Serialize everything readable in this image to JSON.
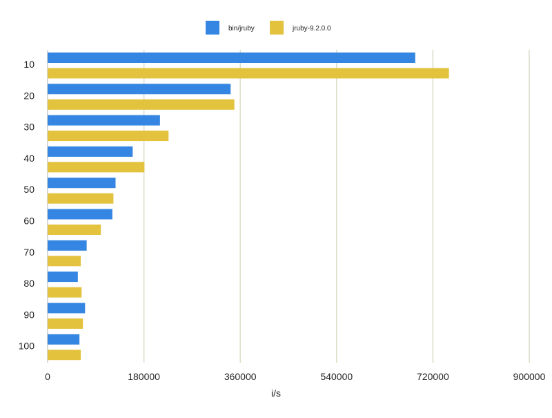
{
  "chart_data": {
    "type": "bar",
    "orientation": "horizontal",
    "title": "",
    "xlabel": "i/s",
    "ylabel": "",
    "xlim": [
      0,
      900000
    ],
    "xticks": [
      "0",
      "180000",
      "360000",
      "540000",
      "720000",
      "900000"
    ],
    "grid": true,
    "legend_position": "top",
    "categories": [
      "10",
      "20",
      "30",
      "40",
      "50",
      "60",
      "70",
      "80",
      "90",
      "100"
    ],
    "series": [
      {
        "name": "bin/jruby",
        "color": "#3586e2",
        "values": [
          687000,
          342000,
          210000,
          159000,
          127000,
          121000,
          73000,
          56500,
          70000,
          59500
        ]
      },
      {
        "name": "jruby-9.2.0.0",
        "color": "#e3c23e",
        "values": [
          750000,
          349000,
          226000,
          181000,
          123000,
          99500,
          62000,
          63500,
          66000,
          62000
        ]
      }
    ]
  }
}
